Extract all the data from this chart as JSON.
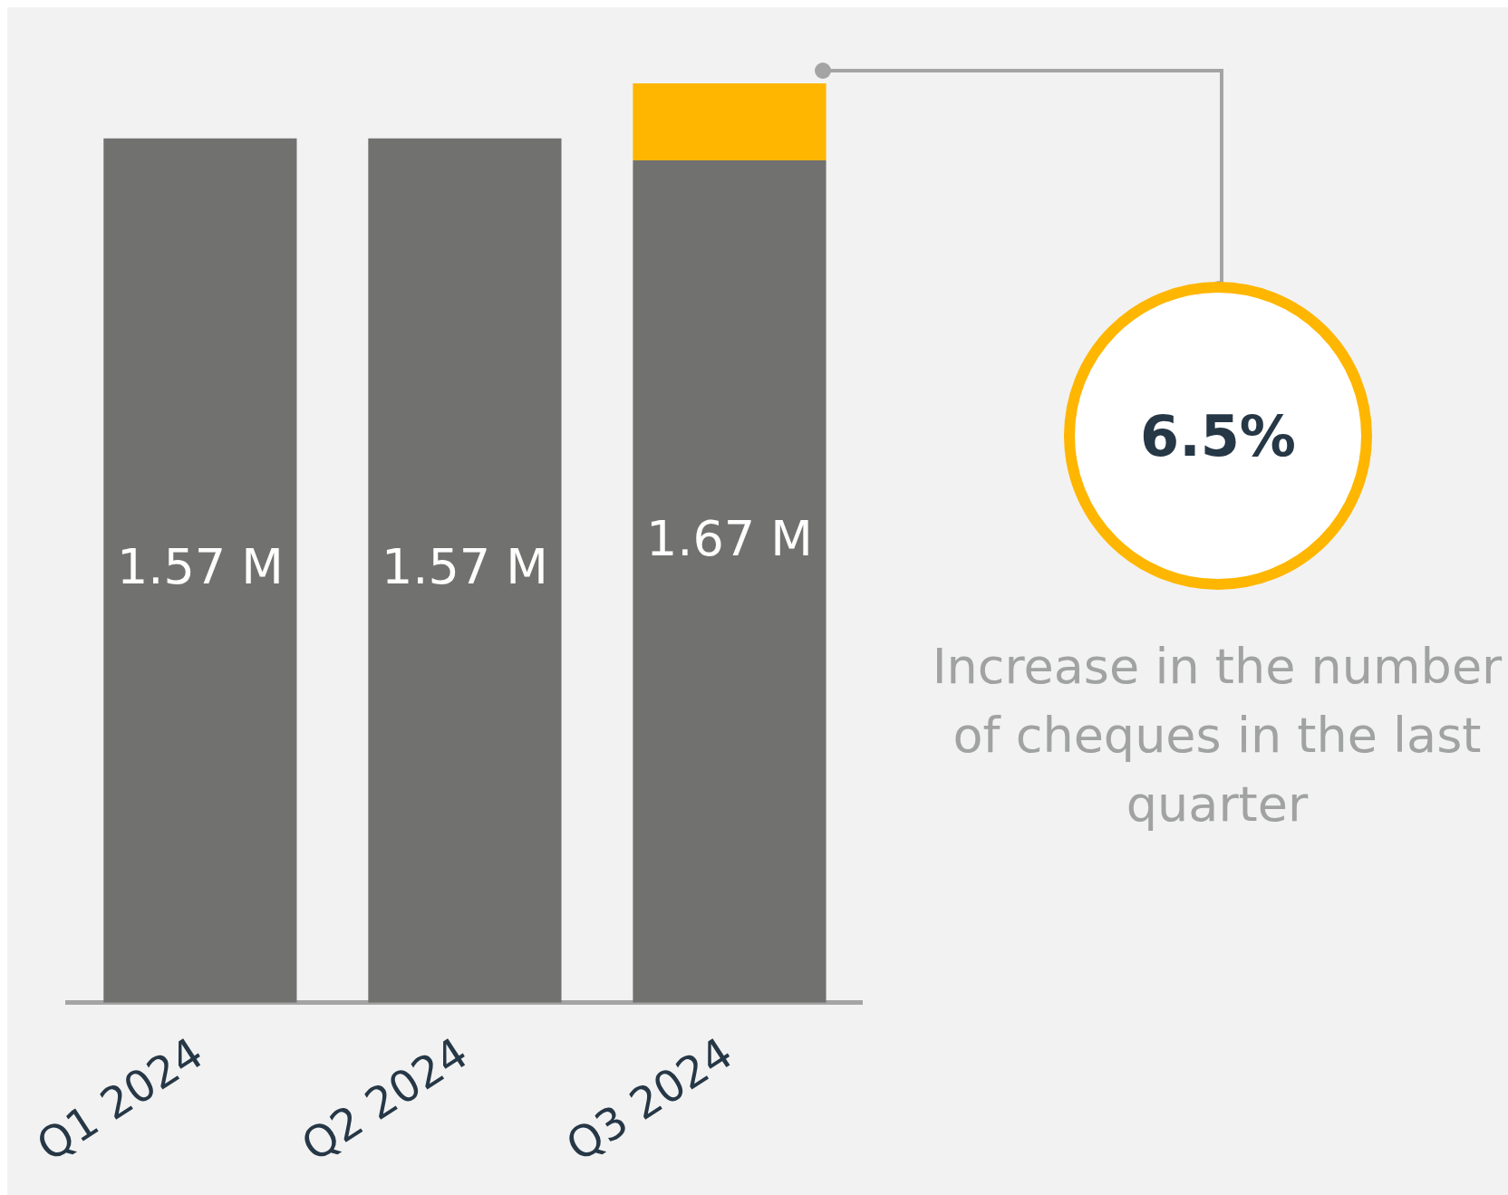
{
  "chart_data": {
    "type": "bar",
    "categories": [
      "Q1 2024",
      "Q2 2024",
      "Q3 2024"
    ],
    "stacked": true,
    "tick_labels": "x",
    "grid": false,
    "legend": false,
    "series": [
      {
        "color": "#717270",
        "values": [
          1.57,
          1.57,
          1.53
        ],
        "value_labels": [
          "1.57 M",
          "1.57 M",
          null
        ]
      },
      {
        "color": "#ffb600",
        "values": [
          null,
          null,
          0.14
        ]
      }
    ],
    "totals": [
      null,
      null,
      "1.67 M"
    ],
    "annotations": [
      "6.5%",
      "Increase in the number of cheques in the last quarter"
    ]
  }
}
